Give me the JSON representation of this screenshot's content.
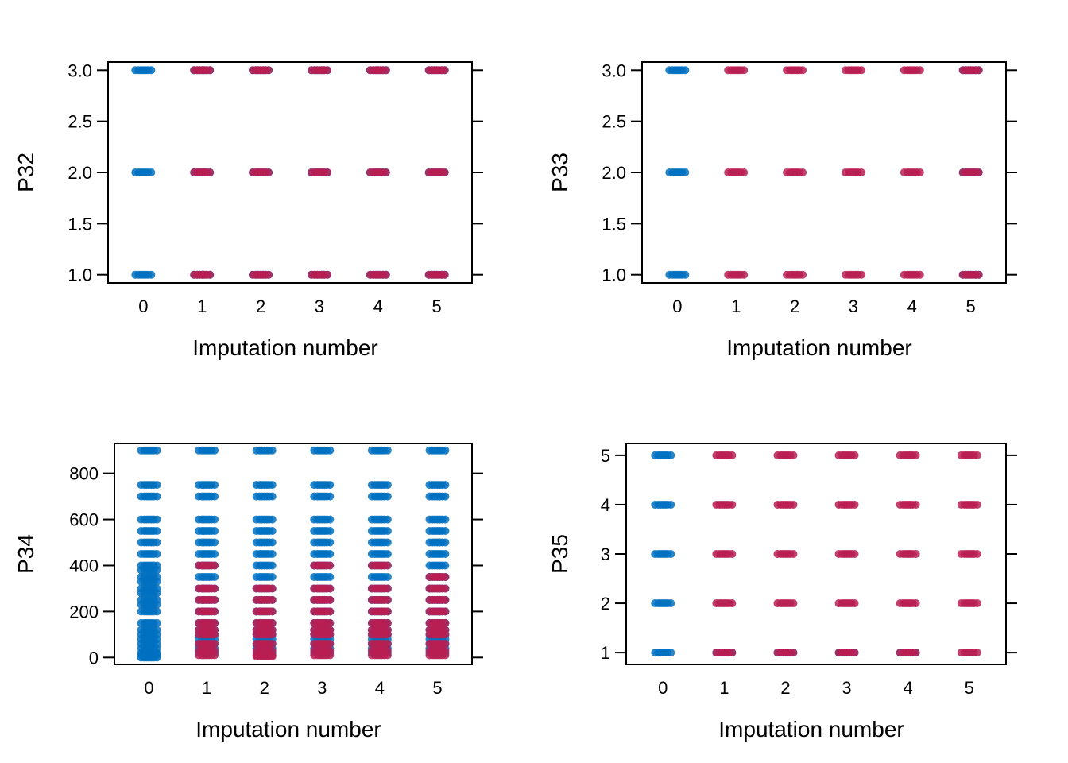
{
  "colors": {
    "observed": "#0070C0",
    "imputed": "#B81E52"
  },
  "chart_data": [
    {
      "type": "scatter",
      "title": "",
      "xlabel": "Imputation number",
      "ylabel": "P32",
      "x_ticks": [
        "0",
        "1",
        "2",
        "3",
        "4",
        "5"
      ],
      "y_ticks": [
        "1.0",
        "1.5",
        "2.0",
        "2.5",
        "3.0"
      ],
      "xlim": [
        -0.6,
        5.6
      ],
      "ylim": [
        0.92,
        3.08
      ],
      "grid": false,
      "series": [
        {
          "x": [
            0,
            0,
            0,
            1,
            1,
            1,
            2,
            2,
            2,
            3,
            3,
            3,
            4,
            4,
            4,
            5,
            5,
            5
          ],
          "y": [
            1,
            2,
            3,
            1,
            2,
            3,
            1,
            2,
            3,
            1,
            2,
            3,
            1,
            2,
            3,
            1,
            2,
            3
          ]
        },
        {
          "x": [
            1,
            1,
            1,
            2,
            2,
            2,
            3,
            3,
            3,
            4,
            4,
            4,
            5,
            5,
            5
          ],
          "y": [
            1,
            2,
            3,
            1,
            2,
            3,
            1,
            2,
            3,
            1,
            2,
            3,
            1,
            2,
            3
          ]
        }
      ]
    },
    {
      "type": "scatter",
      "title": "",
      "xlabel": "Imputation number",
      "ylabel": "P33",
      "x_ticks": [
        "0",
        "1",
        "2",
        "3",
        "4",
        "5"
      ],
      "y_ticks": [
        "1.0",
        "1.5",
        "2.0",
        "2.5",
        "3.0"
      ],
      "xlim": [
        -0.6,
        5.6
      ],
      "ylim": [
        0.92,
        3.08
      ],
      "grid": false,
      "series": [
        {
          "x": [
            0,
            0,
            0,
            5,
            5,
            5
          ],
          "y": [
            1,
            2,
            3,
            1,
            2,
            3
          ]
        },
        {
          "x": [
            1,
            1,
            1,
            2,
            2,
            2,
            3,
            3,
            3,
            4,
            4,
            4,
            5,
            5,
            5
          ],
          "y": [
            1,
            2,
            3,
            1,
            2,
            3,
            1,
            2,
            3,
            1,
            2,
            3,
            1,
            2,
            3
          ]
        }
      ]
    },
    {
      "type": "scatter",
      "title": "",
      "xlabel": "Imputation number",
      "ylabel": "P34",
      "x_ticks": [
        "0",
        "1",
        "2",
        "3",
        "4",
        "5"
      ],
      "y_ticks": [
        "0",
        "200",
        "400",
        "600",
        "800"
      ],
      "xlim": [
        -0.6,
        5.6
      ],
      "ylim": [
        -30,
        930
      ],
      "grid": false,
      "series": [
        {
          "x": [
            0,
            0,
            0,
            0,
            0,
            0,
            0,
            0,
            0,
            0,
            0,
            0,
            0,
            0,
            0,
            0,
            0,
            0,
            0,
            0,
            0,
            0,
            0,
            0,
            0,
            1,
            1,
            1,
            1,
            1,
            1,
            1,
            1,
            1,
            1,
            1,
            1,
            1,
            1,
            1,
            1,
            1,
            1,
            1,
            2,
            2,
            2,
            2,
            2,
            2,
            2,
            2,
            2,
            2,
            2,
            2,
            2,
            2,
            2,
            2,
            2,
            2,
            2,
            3,
            3,
            3,
            3,
            3,
            3,
            3,
            3,
            3,
            3,
            3,
            3,
            3,
            3,
            3,
            3,
            3,
            3,
            3,
            4,
            4,
            4,
            4,
            4,
            4,
            4,
            4,
            4,
            4,
            4,
            4,
            4,
            4,
            4,
            4,
            4,
            4,
            4,
            5,
            5,
            5,
            5,
            5,
            5,
            5,
            5,
            5,
            5,
            5,
            5,
            5,
            5,
            5,
            5,
            5,
            5,
            5
          ],
          "y": [
            900,
            750,
            700,
            600,
            550,
            500,
            450,
            400,
            350,
            300,
            250,
            200,
            150,
            120,
            100,
            80,
            60,
            40,
            20,
            10,
            0,
            280,
            330,
            380,
            230,
            900,
            750,
            700,
            600,
            550,
            500,
            450,
            400,
            350,
            300,
            250,
            200,
            150,
            120,
            100,
            80,
            60,
            40,
            20,
            900,
            750,
            700,
            600,
            550,
            500,
            450,
            400,
            350,
            300,
            250,
            200,
            150,
            120,
            100,
            80,
            60,
            40,
            20,
            900,
            750,
            700,
            600,
            550,
            500,
            450,
            400,
            350,
            300,
            250,
            200,
            150,
            120,
            100,
            80,
            60,
            40,
            20,
            900,
            750,
            700,
            600,
            550,
            500,
            450,
            400,
            350,
            300,
            250,
            200,
            150,
            120,
            100,
            80,
            60,
            40,
            20,
            900,
            750,
            700,
            600,
            550,
            500,
            450,
            400,
            350,
            300,
            250,
            200,
            150,
            120,
            100,
            80,
            60,
            40,
            20
          ]
        },
        {
          "x": [
            1,
            1,
            1,
            1,
            1,
            1,
            1,
            1,
            1,
            1,
            2,
            2,
            2,
            2,
            2,
            2,
            2,
            2,
            2,
            2,
            3,
            3,
            3,
            3,
            3,
            3,
            3,
            3,
            3,
            3,
            4,
            4,
            4,
            4,
            4,
            4,
            4,
            4,
            4,
            4,
            5,
            5,
            5,
            5,
            5,
            5,
            5,
            5,
            5,
            5
          ],
          "y": [
            400,
            300,
            250,
            200,
            150,
            120,
            100,
            60,
            30,
            10,
            300,
            250,
            200,
            150,
            120,
            100,
            60,
            30,
            10,
            5,
            400,
            300,
            250,
            200,
            150,
            120,
            100,
            60,
            30,
            10,
            400,
            300,
            250,
            200,
            150,
            120,
            100,
            60,
            30,
            10,
            350,
            300,
            250,
            200,
            150,
            120,
            100,
            60,
            30,
            10
          ]
        }
      ]
    },
    {
      "type": "scatter",
      "title": "",
      "xlabel": "Imputation number",
      "ylabel": "P35",
      "x_ticks": [
        "0",
        "1",
        "2",
        "3",
        "4",
        "5"
      ],
      "y_ticks": [
        "1",
        "2",
        "3",
        "4",
        "5"
      ],
      "xlim": [
        -0.6,
        5.6
      ],
      "ylim": [
        0.76,
        5.24
      ],
      "grid": false,
      "series": [
        {
          "x": [
            0,
            0,
            0,
            0,
            0,
            1,
            2,
            3,
            4
          ],
          "y": [
            1,
            2,
            3,
            4,
            5,
            1,
            1,
            1,
            1
          ]
        },
        {
          "x": [
            1,
            1,
            1,
            1,
            1,
            2,
            2,
            2,
            2,
            2,
            3,
            3,
            3,
            3,
            3,
            4,
            4,
            4,
            4,
            4,
            5,
            5,
            5,
            5,
            5
          ],
          "y": [
            1,
            2,
            3,
            4,
            5,
            1,
            2,
            3,
            4,
            5,
            1,
            2,
            3,
            4,
            5,
            1,
            2,
            3,
            4,
            5,
            1,
            2,
            3,
            4,
            5
          ]
        }
      ]
    }
  ]
}
